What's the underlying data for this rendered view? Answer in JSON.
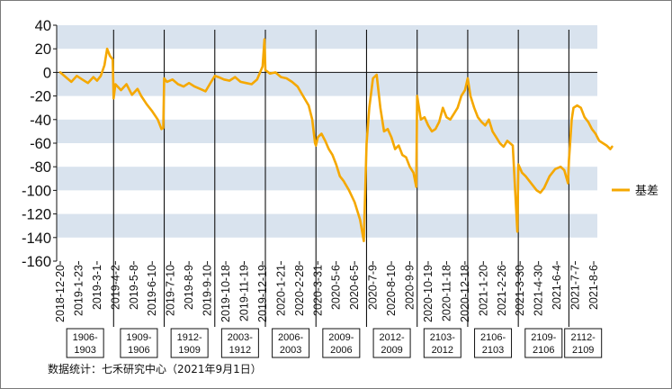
{
  "chart_data": {
    "type": "line",
    "ylim": [
      -160,
      40
    ],
    "yticks": [
      40,
      20,
      0,
      -20,
      -40,
      -60,
      -80,
      -100,
      -120,
      -140,
      -160
    ],
    "x_tick_labels": [
      "2018-12-20",
      "2019-1-23",
      "2019-3-1",
      "2019-4-2",
      "2019-5-8",
      "2019-6-10",
      "2019-7-10",
      "2019-8-9",
      "2019-9-10",
      "2019-10-18",
      "2019-11-19",
      "2019-12-19",
      "2020-1-21",
      "2020-2-28",
      "2020-3-31",
      "2020-5-6",
      "2020-6-5",
      "2020-7-9",
      "2020-8-10",
      "2020-9-9",
      "2020-10-19",
      "2020-11-18",
      "2020-12-18",
      "2021-1-20",
      "2021-2-26",
      "2021-3-30",
      "2021-4-30",
      "2021-6-4",
      "2021-7-7",
      "2021-8-6"
    ],
    "contracts": [
      "1906-1903",
      "1909-1906",
      "1912-1909",
      "2003-1912",
      "2006-2003",
      "2009-2006",
      "2012-2009",
      "2103-2012",
      "2106-2103",
      "2109-2106",
      "2112-2109"
    ],
    "contract_boundaries_index": [
      2.9,
      5.65,
      8.4,
      11.15,
      13.9,
      16.65,
      19.4,
      22.15,
      24.9,
      27.65
    ],
    "series": [
      {
        "name": "基差",
        "color": "#F5A800",
        "points": [
          [
            0,
            0
          ],
          [
            0.3,
            -4
          ],
          [
            0.6,
            -8
          ],
          [
            0.9,
            -3
          ],
          [
            1.2,
            -6
          ],
          [
            1.5,
            -9
          ],
          [
            1.8,
            -4
          ],
          [
            2.0,
            -7
          ],
          [
            2.2,
            -3
          ],
          [
            2.4,
            6
          ],
          [
            2.55,
            20
          ],
          [
            2.7,
            14
          ],
          [
            2.85,
            11
          ],
          [
            2.9,
            -22
          ],
          [
            3.0,
            -10
          ],
          [
            3.3,
            -15
          ],
          [
            3.6,
            -10
          ],
          [
            3.9,
            -19
          ],
          [
            4.2,
            -14
          ],
          [
            4.4,
            -20
          ],
          [
            4.7,
            -27
          ],
          [
            5.0,
            -33
          ],
          [
            5.3,
            -40
          ],
          [
            5.5,
            -48
          ],
          [
            5.6,
            -47
          ],
          [
            5.65,
            -5
          ],
          [
            5.8,
            -8
          ],
          [
            6.1,
            -6
          ],
          [
            6.4,
            -10
          ],
          [
            6.7,
            -12
          ],
          [
            7.0,
            -9
          ],
          [
            7.3,
            -12
          ],
          [
            7.6,
            -14
          ],
          [
            7.9,
            -16
          ],
          [
            8.2,
            -8
          ],
          [
            8.4,
            -3
          ],
          [
            8.6,
            -4
          ],
          [
            8.9,
            -6
          ],
          [
            9.2,
            -7
          ],
          [
            9.5,
            -4
          ],
          [
            9.8,
            -8
          ],
          [
            10.1,
            -9
          ],
          [
            10.4,
            -10
          ],
          [
            10.7,
            -6
          ],
          [
            11.0,
            5
          ],
          [
            11.1,
            28
          ],
          [
            11.15,
            2
          ],
          [
            11.4,
            -1
          ],
          [
            11.7,
            0
          ],
          [
            12.0,
            -4
          ],
          [
            12.3,
            -5
          ],
          [
            12.6,
            -8
          ],
          [
            12.9,
            -12
          ],
          [
            13.2,
            -20
          ],
          [
            13.5,
            -28
          ],
          [
            13.7,
            -40
          ],
          [
            13.85,
            -60
          ],
          [
            13.9,
            -62
          ],
          [
            14.0,
            -55
          ],
          [
            14.2,
            -52
          ],
          [
            14.4,
            -58
          ],
          [
            14.6,
            -65
          ],
          [
            14.8,
            -70
          ],
          [
            15.0,
            -78
          ],
          [
            15.2,
            -88
          ],
          [
            15.4,
            -92
          ],
          [
            15.7,
            -100
          ],
          [
            16.0,
            -110
          ],
          [
            16.3,
            -125
          ],
          [
            16.5,
            -143
          ],
          [
            16.65,
            -60
          ],
          [
            16.8,
            -30
          ],
          [
            17.0,
            -5
          ],
          [
            17.2,
            -2
          ],
          [
            17.4,
            -30
          ],
          [
            17.6,
            -50
          ],
          [
            17.8,
            -48
          ],
          [
            18.0,
            -55
          ],
          [
            18.2,
            -65
          ],
          [
            18.4,
            -62
          ],
          [
            18.6,
            -70
          ],
          [
            18.8,
            -72
          ],
          [
            19.0,
            -80
          ],
          [
            19.2,
            -85
          ],
          [
            19.35,
            -97
          ],
          [
            19.4,
            -20
          ],
          [
            19.6,
            -40
          ],
          [
            19.8,
            -38
          ],
          [
            20.0,
            -45
          ],
          [
            20.2,
            -50
          ],
          [
            20.4,
            -48
          ],
          [
            20.6,
            -42
          ],
          [
            20.8,
            -30
          ],
          [
            21.0,
            -38
          ],
          [
            21.2,
            -40
          ],
          [
            21.4,
            -35
          ],
          [
            21.6,
            -30
          ],
          [
            21.8,
            -20
          ],
          [
            22.0,
            -15
          ],
          [
            22.15,
            -5
          ],
          [
            22.3,
            -20
          ],
          [
            22.5,
            -30
          ],
          [
            22.7,
            -38
          ],
          [
            22.9,
            -42
          ],
          [
            23.1,
            -45
          ],
          [
            23.3,
            -40
          ],
          [
            23.5,
            -50
          ],
          [
            23.7,
            -55
          ],
          [
            23.9,
            -60
          ],
          [
            24.1,
            -63
          ],
          [
            24.3,
            -58
          ],
          [
            24.6,
            -62
          ],
          [
            24.85,
            -135
          ],
          [
            24.9,
            -78
          ],
          [
            25.1,
            -85
          ],
          [
            25.3,
            -88
          ],
          [
            25.5,
            -92
          ],
          [
            25.7,
            -96
          ],
          [
            25.9,
            -100
          ],
          [
            26.1,
            -102
          ],
          [
            26.3,
            -98
          ],
          [
            26.6,
            -88
          ],
          [
            26.9,
            -82
          ],
          [
            27.2,
            -80
          ],
          [
            27.4,
            -83
          ],
          [
            27.6,
            -94
          ],
          [
            27.65,
            -75
          ],
          [
            27.8,
            -40
          ],
          [
            27.9,
            -30
          ],
          [
            28.1,
            -28
          ],
          [
            28.3,
            -30
          ],
          [
            28.5,
            -38
          ],
          [
            28.7,
            -42
          ],
          [
            28.9,
            -48
          ],
          [
            29.1,
            -52
          ],
          [
            29.3,
            -58
          ],
          [
            29.5,
            -60
          ],
          [
            29.7,
            -62
          ],
          [
            29.9,
            -65
          ],
          [
            30.0,
            -63
          ]
        ]
      }
    ],
    "legend": {
      "label": "基差",
      "position": "right"
    },
    "source": "数据统计：七禾研究中心（2021年9月1日）"
  },
  "colors": {
    "series": "#F5A800",
    "band": "#D9E3EE",
    "axis": "#111111"
  }
}
